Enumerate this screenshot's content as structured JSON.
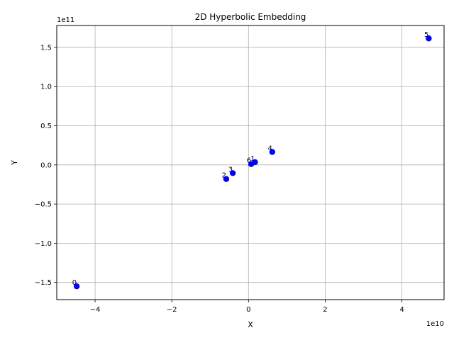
{
  "chart_data": {
    "type": "scatter",
    "title": "2D Hyperbolic Embedding",
    "xlabel": "X",
    "ylabel": "Y",
    "x_offset_label": "1e10",
    "y_offset_label": "1e11",
    "xlim": [
      -5.0,
      5.1
    ],
    "ylim": [
      -1.72,
      1.78
    ],
    "x_ticks": [
      -4,
      -2,
      0,
      2,
      4
    ],
    "x_tick_labels": [
      "−4",
      "−2",
      "0",
      "2",
      "4"
    ],
    "y_ticks": [
      -1.5,
      -1.0,
      -0.5,
      0.0,
      0.5,
      1.0,
      1.5
    ],
    "y_tick_labels": [
      "−1.5",
      "−1.0",
      "−0.5",
      "0.0",
      "0.5",
      "1.0",
      "1.5"
    ],
    "grid": true,
    "marker_color": "#0000ff",
    "points": [
      {
        "label": "0",
        "x": -4.48,
        "y": -1.55
      },
      {
        "label": "1",
        "x": 0.17,
        "y": 0.035
      },
      {
        "label": "2",
        "x": -0.58,
        "y": -0.18
      },
      {
        "label": "3",
        "x": -0.41,
        "y": -0.105
      },
      {
        "label": "4",
        "x": 0.62,
        "y": 0.165
      },
      {
        "label": "5",
        "x": 4.7,
        "y": 1.615
      },
      {
        "label": "6",
        "x": 0.07,
        "y": 0.01
      }
    ]
  }
}
